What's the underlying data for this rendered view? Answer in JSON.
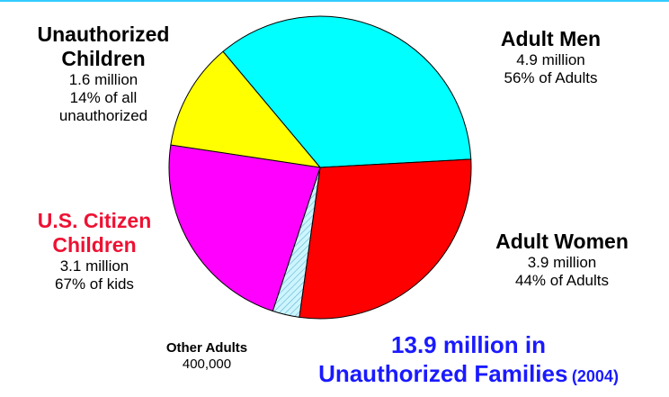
{
  "chart_data": {
    "type": "pie",
    "slices": [
      {
        "name": "Adult Men",
        "value": 4.9,
        "color": "#00ffff",
        "amount": "4.9 million",
        "share": "56% of Adults"
      },
      {
        "name": "Adult Women",
        "value": 3.9,
        "color": "#ff0000",
        "amount": "3.9 million",
        "share": "44% of Adults"
      },
      {
        "name": "Other Adults",
        "value": 0.4,
        "color": "#ccf5ff",
        "amount": "400,000"
      },
      {
        "name": "U.S. Citizen Children",
        "value": 3.1,
        "color": "#ff00ff",
        "amount": "3.1 million",
        "share": "67% of kids"
      },
      {
        "name": "Unauthorized Children",
        "value": 1.6,
        "color": "#ffff00",
        "amount": "1.6 million",
        "share": "14% of all unauthorized"
      }
    ],
    "total_line1": "13.9 million in",
    "total_line2": "Unauthorized Families",
    "total_year": "(2004)"
  },
  "labels": {
    "men": {
      "name": "Adult Men",
      "amount": "4.9 million",
      "share": "56% of Adults"
    },
    "women": {
      "name": "Adult Women",
      "amount": "3.9 million",
      "share": "44% of Adults"
    },
    "other": {
      "name": "Other Adults",
      "amount": "400,000"
    },
    "citizen": {
      "name_line1": "U.S. Citizen",
      "name_line2": "Children",
      "amount": "3.1 million",
      "share": "67% of kids"
    },
    "unauth": {
      "name_line1": "Unauthorized",
      "name_line2": "Children",
      "amount": "1.6 million",
      "share_line1": "14% of all",
      "share_line2": "unauthorized"
    }
  }
}
